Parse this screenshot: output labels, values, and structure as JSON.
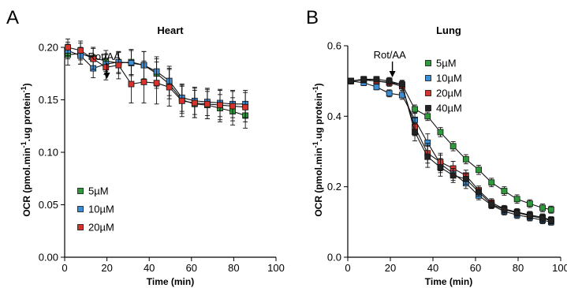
{
  "chart_data": [
    {
      "type": "line",
      "panel_letter": "A",
      "title": "Heart",
      "xlabel": "Time (min)",
      "ylabel_main": "OCR (pmol.min",
      "ylabel_sup1": "-1",
      "ylabel_mid": ".ug protein",
      "ylabel_sup2": "-1",
      "ylabel_end": ")",
      "xlim": [
        0,
        100
      ],
      "ylim": [
        0,
        0.2
      ],
      "xticks": [
        0,
        20,
        40,
        60,
        80,
        100
      ],
      "xtick_labels": [
        "0",
        "20",
        "40",
        "60",
        "80",
        "100"
      ],
      "yticks": [
        0,
        0.05,
        0.1,
        0.15,
        0.2
      ],
      "ytick_labels": [
        "0.00",
        "0.05",
        "0.10",
        "0.15",
        "0.20"
      ],
      "grid": false,
      "legend_position": "bottom-left",
      "annotation": {
        "label": "Rot/AA",
        "x": 17
      },
      "x": [
        1.5,
        7.5,
        13.5,
        19.5,
        25.5,
        31.5,
        37.5,
        43.5,
        49.5,
        55.5,
        61.5,
        67.5,
        73.5,
        79.5,
        85.5
      ],
      "series": [
        {
          "name": "5µM",
          "color": "#2e9b3a",
          "values": [
            0.193,
            0.194,
            0.19,
            0.187,
            0.185,
            0.186,
            0.183,
            0.175,
            0.165,
            0.15,
            0.146,
            0.145,
            0.142,
            0.139,
            0.135
          ],
          "errors": [
            0.01,
            0.01,
            0.01,
            0.01,
            0.01,
            0.012,
            0.013,
            0.014,
            0.014,
            0.013,
            0.013,
            0.013,
            0.013,
            0.013,
            0.012
          ]
        },
        {
          "name": "10µM",
          "color": "#3a8ed8",
          "values": [
            0.197,
            0.192,
            0.18,
            0.184,
            0.186,
            0.185,
            0.183,
            0.177,
            0.168,
            0.152,
            0.149,
            0.148,
            0.147,
            0.146,
            0.146
          ],
          "errors": [
            0.008,
            0.008,
            0.009,
            0.01,
            0.01,
            0.012,
            0.013,
            0.014,
            0.014,
            0.013,
            0.013,
            0.013,
            0.013,
            0.013,
            0.013
          ]
        },
        {
          "name": "20µM",
          "color": "#d6332c",
          "values": [
            0.2,
            0.197,
            0.189,
            0.181,
            0.183,
            0.165,
            0.167,
            0.166,
            0.162,
            0.149,
            0.147,
            0.146,
            0.145,
            0.144,
            0.143
          ],
          "errors": [
            0.008,
            0.009,
            0.01,
            0.012,
            0.013,
            0.018,
            0.02,
            0.02,
            0.018,
            0.015,
            0.014,
            0.014,
            0.014,
            0.014,
            0.014
          ]
        }
      ]
    },
    {
      "type": "line",
      "panel_letter": "B",
      "title": "Lung",
      "xlabel": "Time (min)",
      "ylabel_main": "OCR (pmol.min",
      "ylabel_sup1": "-1",
      "ylabel_mid": ".ug protein",
      "ylabel_sup2": "-1",
      "ylabel_end": ")",
      "xlim": [
        0,
        100
      ],
      "ylim": [
        0,
        0.6
      ],
      "xticks": [
        0,
        20,
        40,
        60,
        80,
        100
      ],
      "xtick_labels": [
        "0",
        "20",
        "40",
        "60",
        "80",
        "100"
      ],
      "yticks": [
        0,
        0.2,
        0.4,
        0.6
      ],
      "ytick_labels": [
        "0.0",
        "0.2",
        "0.4",
        "0.6"
      ],
      "grid": false,
      "legend_position": "top-right",
      "annotation": {
        "label": "Rot/AA",
        "x": 18
      },
      "x": [
        1.5,
        7.5,
        13.5,
        19.5,
        25.5,
        31.5,
        37.5,
        43.5,
        49.5,
        55.5,
        61.5,
        67.5,
        73.5,
        79.5,
        85.5,
        91.5,
        95.5
      ],
      "series": [
        {
          "name": "5µM",
          "color": "#2e9b3a",
          "values": [
            0.5,
            0.505,
            0.5,
            0.496,
            0.49,
            0.42,
            0.4,
            0.355,
            0.315,
            0.278,
            0.248,
            0.212,
            0.188,
            0.165,
            0.152,
            0.14,
            0.135
          ],
          "errors": [
            0.008,
            0.008,
            0.008,
            0.008,
            0.01,
            0.012,
            0.012,
            0.013,
            0.013,
            0.013,
            0.013,
            0.012,
            0.012,
            0.012,
            0.011,
            0.011,
            0.01
          ]
        },
        {
          "name": "10µM",
          "color": "#3a8ed8",
          "values": [
            0.5,
            0.495,
            0.483,
            0.465,
            0.46,
            0.39,
            0.325,
            0.265,
            0.238,
            0.21,
            0.175,
            0.148,
            0.13,
            0.12,
            0.113,
            0.105,
            0.1
          ],
          "errors": [
            0.008,
            0.008,
            0.008,
            0.01,
            0.012,
            0.02,
            0.025,
            0.025,
            0.02,
            0.015,
            0.012,
            0.01,
            0.01,
            0.01,
            0.01,
            0.01,
            0.009
          ]
        },
        {
          "name": "20µM",
          "color": "#d6332c",
          "values": [
            0.5,
            0.503,
            0.5,
            0.495,
            0.485,
            0.37,
            0.295,
            0.27,
            0.252,
            0.232,
            0.19,
            0.155,
            0.137,
            0.128,
            0.12,
            0.113,
            0.106
          ],
          "errors": [
            0.008,
            0.008,
            0.008,
            0.01,
            0.012,
            0.025,
            0.028,
            0.025,
            0.02,
            0.015,
            0.012,
            0.011,
            0.01,
            0.01,
            0.01,
            0.01,
            0.009
          ]
        },
        {
          "name": "40µM",
          "color": "#222222",
          "values": [
            0.5,
            0.505,
            0.505,
            0.5,
            0.49,
            0.355,
            0.285,
            0.255,
            0.232,
            0.222,
            0.185,
            0.15,
            0.135,
            0.126,
            0.118,
            0.11,
            0.104
          ],
          "errors": [
            0.008,
            0.008,
            0.008,
            0.01,
            0.012,
            0.025,
            0.03,
            0.025,
            0.02,
            0.015,
            0.012,
            0.011,
            0.01,
            0.01,
            0.01,
            0.01,
            0.009
          ]
        }
      ]
    }
  ]
}
